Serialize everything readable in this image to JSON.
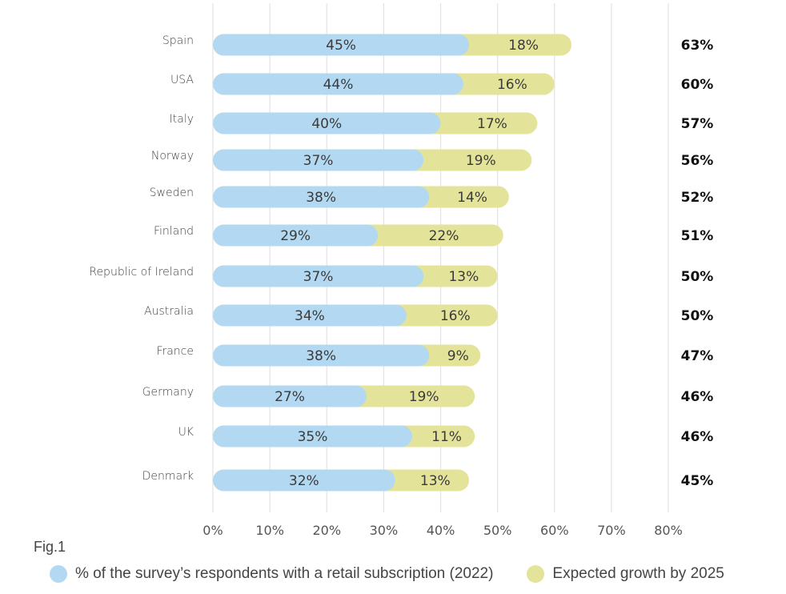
{
  "chart_data": {
    "type": "bar",
    "orientation": "horizontal",
    "stacked": true,
    "title": "",
    "figure_label": "Fig.1",
    "xlabel": "",
    "ylabel": "",
    "xlim": [
      0,
      80
    ],
    "x_ticks": [
      "0%",
      "10%",
      "20%",
      "30%",
      "40%",
      "50%",
      "60%",
      "70%",
      "80%"
    ],
    "x_tick_values": [
      0,
      10,
      20,
      30,
      40,
      50,
      60,
      70,
      80
    ],
    "grid": true,
    "legend_position": "bottom",
    "categories": [
      "Spain",
      "USA",
      "Italy",
      "Norway",
      "Sweden",
      "Finland",
      "Republic of Ireland",
      "Australia",
      "France",
      "Germany",
      "UK",
      "Denmark"
    ],
    "series": [
      {
        "name": "% of the survey’s respondents with a retail subscription (2022)",
        "color": "#b3d9f2",
        "values": [
          45,
          44,
          40,
          37,
          38,
          29,
          37,
          34,
          38,
          27,
          35,
          32
        ],
        "labels": [
          "45%",
          "44%",
          "40%",
          "37%",
          "38%",
          "29%",
          "37%",
          "34%",
          "38%",
          "27%",
          "35%",
          "32%"
        ]
      },
      {
        "name": "Expected growth by 2025",
        "color": "#e3e49a",
        "values": [
          18,
          16,
          17,
          19,
          14,
          22,
          13,
          16,
          9,
          19,
          11,
          13
        ],
        "labels": [
          "18%",
          "16%",
          "17%",
          "19%",
          "14%",
          "22%",
          "13%",
          "16%",
          "9%",
          "19%",
          "11%",
          "13%"
        ]
      }
    ],
    "totals": [
      63,
      60,
      57,
      56,
      52,
      51,
      50,
      50,
      47,
      46,
      46,
      45
    ],
    "total_labels": [
      "63%",
      "60%",
      "57%",
      "56%",
      "52%",
      "51%",
      "50%",
      "50%",
      "47%",
      "46%",
      "46%",
      "45%"
    ]
  },
  "legend": {
    "items": [
      {
        "label": "% of the survey’s respondents with a retail subscription (2022)",
        "color": "#b3d9f2"
      },
      {
        "label": "Expected growth by 2025",
        "color": "#e3e49a"
      }
    ]
  }
}
